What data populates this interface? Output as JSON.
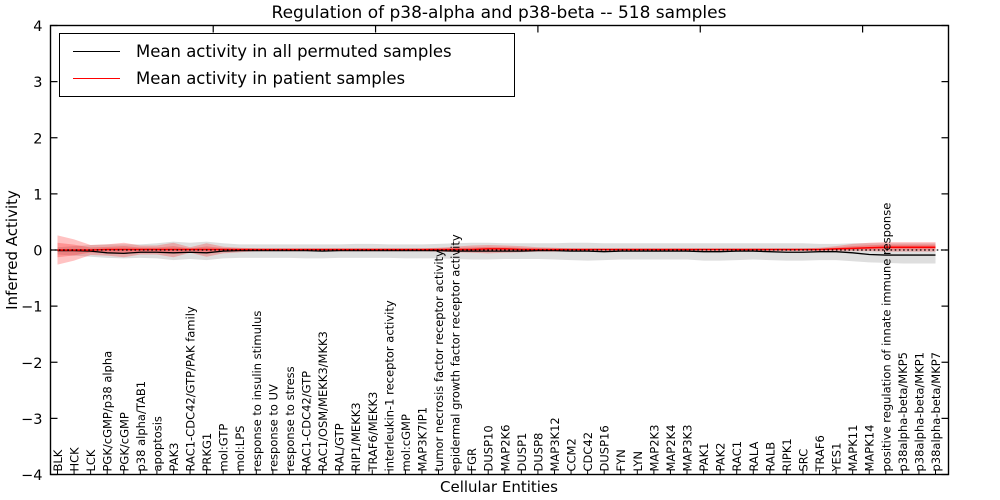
{
  "figure": {
    "title": "Regulation of p38-alpha and p38-beta -- 518 samples",
    "xlabel": "Cellular Entities",
    "ylabel": "Inferred Activity"
  },
  "legend": {
    "position": "upper left",
    "items": [
      {
        "label": "Mean activity in all permuted samples",
        "color": "#000000"
      },
      {
        "label": "Mean activity in patient samples",
        "color": "#ff0000"
      }
    ]
  },
  "chart_data": {
    "type": "line",
    "title": "Regulation of p38-alpha and p38-beta -- 518 samples",
    "xlabel": "Cellular Entities",
    "ylabel": "Inferred Activity",
    "ylim": [
      -4,
      4
    ],
    "yticks": [
      4,
      3,
      2,
      1,
      0,
      -1,
      -2,
      -3,
      -4
    ],
    "grid": false,
    "legend_position": "upper left",
    "zero_line": {
      "y": 0,
      "style": "dotted",
      "color": "#000000"
    },
    "top_ticks_at_index": [
      9.4,
      19.2,
      29.0,
      38.8,
      48.6
    ],
    "categories": [
      "BLK",
      "HCK",
      "LCK",
      "PGK/cGMP/p38 alpha",
      "PGK/cGMP",
      "p38 alpha/TAB1",
      "apoptosis",
      "PAK3",
      "RAC1-CDC42/GTP/PAK family",
      "PRKG1",
      "mol:GTP",
      "mol:LPS",
      "response to insulin stimulus",
      "response to UV",
      "response to stress",
      "RAC1-CDC42/GTP",
      "RAC1/OSM/MEKK3/MKK3",
      "RAL/GTP",
      "RIP1/MEKK3",
      "TRAF6/MEKK3",
      "interleukin-1 receptor activity",
      "mol:cGMP",
      "MAP3K7IP1",
      "tumor necrosis factor receptor activity",
      "epidermal growth factor receptor activity",
      "FGR",
      "DUSP10",
      "MAP2K6",
      "DUSP1",
      "DUSP8",
      "MAP3K12",
      "CCM2",
      "CDC42",
      "DUSP16",
      "FYN",
      "LYN",
      "MAP2K3",
      "MAP2K4",
      "MAP3K3",
      "PAK1",
      "PAK2",
      "RAC1",
      "RALA",
      "RALB",
      "RIPK1",
      "SRC",
      "TRAF6",
      "YES1",
      "MAPK11",
      "MAPK14",
      "positive regulation of innate immune response",
      "p38alpha-beta/MKP5",
      "p38alpha-beta/MKP1",
      "p38alpha-beta/MKP7"
    ],
    "series": [
      {
        "name": "Mean activity in all permuted samples",
        "color": "#000000",
        "line_width": 1.3,
        "band_color": "#000000",
        "band_opacity": 0.13,
        "values": [
          -0.01,
          -0.01,
          -0.02,
          -0.05,
          -0.06,
          -0.04,
          -0.04,
          -0.05,
          -0.04,
          -0.05,
          -0.02,
          -0.01,
          -0.01,
          -0.01,
          -0.01,
          -0.01,
          -0.02,
          -0.01,
          -0.01,
          -0.01,
          -0.01,
          -0.01,
          -0.01,
          -0.01,
          -0.02,
          -0.02,
          -0.02,
          -0.02,
          -0.02,
          -0.01,
          -0.01,
          -0.02,
          -0.02,
          -0.03,
          -0.02,
          -0.02,
          -0.02,
          -0.02,
          -0.02,
          -0.03,
          -0.03,
          -0.02,
          -0.02,
          -0.03,
          -0.04,
          -0.04,
          -0.03,
          -0.03,
          -0.05,
          -0.08,
          -0.09,
          -0.09,
          -0.09,
          -0.09
        ],
        "band_upper": [
          0.05,
          0.07,
          0.09,
          0.1,
          0.1,
          0.1,
          0.12,
          0.15,
          0.13,
          0.15,
          0.12,
          0.1,
          0.1,
          0.1,
          0.1,
          0.1,
          0.1,
          0.1,
          0.11,
          0.11,
          0.1,
          0.1,
          0.1,
          0.11,
          0.12,
          0.13,
          0.13,
          0.12,
          0.12,
          0.12,
          0.12,
          0.13,
          0.13,
          0.12,
          0.12,
          0.12,
          0.12,
          0.12,
          0.12,
          0.12,
          0.12,
          0.12,
          0.12,
          0.12,
          0.12,
          0.12,
          0.11,
          0.11,
          0.12,
          0.12,
          0.12,
          0.12,
          0.12,
          0.12
        ],
        "band_lower": [
          -0.08,
          -0.1,
          -0.12,
          -0.14,
          -0.15,
          -0.14,
          -0.15,
          -0.18,
          -0.16,
          -0.18,
          -0.15,
          -0.14,
          -0.14,
          -0.14,
          -0.14,
          -0.15,
          -0.15,
          -0.14,
          -0.14,
          -0.14,
          -0.14,
          -0.15,
          -0.15,
          -0.15,
          -0.16,
          -0.17,
          -0.17,
          -0.16,
          -0.16,
          -0.16,
          -0.17,
          -0.18,
          -0.19,
          -0.18,
          -0.17,
          -0.17,
          -0.17,
          -0.17,
          -0.17,
          -0.19,
          -0.19,
          -0.18,
          -0.17,
          -0.18,
          -0.19,
          -0.19,
          -0.18,
          -0.18,
          -0.2,
          -0.22,
          -0.23,
          -0.24,
          -0.24,
          -0.24
        ]
      },
      {
        "name": "Mean activity in patient samples",
        "color": "#ff0000",
        "line_width": 1.5,
        "band_color": "#ff0000",
        "band_opacity": 0.24,
        "inner_band_scale": 0.5,
        "values": [
          0.0,
          0.0,
          0.0,
          0.01,
          0.01,
          0.01,
          0.01,
          0.01,
          0.01,
          0.01,
          0.01,
          0.01,
          0.01,
          0.01,
          0.01,
          0.01,
          0.01,
          0.01,
          0.01,
          0.01,
          0.01,
          0.01,
          0.01,
          0.01,
          0.01,
          0.01,
          0.02,
          0.02,
          0.01,
          0.01,
          0.01,
          0.01,
          0.01,
          0.01,
          0.01,
          0.01,
          0.01,
          0.01,
          0.01,
          0.01,
          0.01,
          0.01,
          0.01,
          0.01,
          0.01,
          0.01,
          0.01,
          0.02,
          0.03,
          0.04,
          0.05,
          0.05,
          0.05,
          0.05
        ],
        "band_upper": [
          0.26,
          0.19,
          0.09,
          0.1,
          0.13,
          0.08,
          0.08,
          0.13,
          0.05,
          0.12,
          0.06,
          0.04,
          0.03,
          0.03,
          0.03,
          0.03,
          0.03,
          0.03,
          0.03,
          0.03,
          0.03,
          0.03,
          0.03,
          0.04,
          0.06,
          0.08,
          0.09,
          0.08,
          0.07,
          0.05,
          0.04,
          0.03,
          0.03,
          0.03,
          0.03,
          0.03,
          0.03,
          0.03,
          0.03,
          0.03,
          0.03,
          0.03,
          0.03,
          0.03,
          0.03,
          0.03,
          0.04,
          0.07,
          0.11,
          0.13,
          0.14,
          0.14,
          0.14,
          0.14
        ],
        "band_lower": [
          -0.26,
          -0.19,
          -0.09,
          -0.1,
          -0.13,
          -0.08,
          -0.08,
          -0.13,
          -0.05,
          -0.12,
          -0.06,
          -0.04,
          -0.02,
          -0.02,
          -0.02,
          -0.02,
          -0.02,
          -0.02,
          -0.02,
          -0.02,
          -0.02,
          -0.02,
          -0.02,
          -0.03,
          -0.04,
          -0.05,
          -0.06,
          -0.05,
          -0.04,
          -0.03,
          -0.03,
          -0.02,
          -0.02,
          -0.02,
          -0.02,
          -0.02,
          -0.02,
          -0.02,
          -0.02,
          -0.02,
          -0.02,
          -0.02,
          -0.02,
          -0.02,
          -0.02,
          -0.02,
          -0.02,
          -0.02,
          -0.02,
          -0.02,
          -0.03,
          -0.03,
          -0.03,
          -0.03
        ]
      }
    ]
  }
}
